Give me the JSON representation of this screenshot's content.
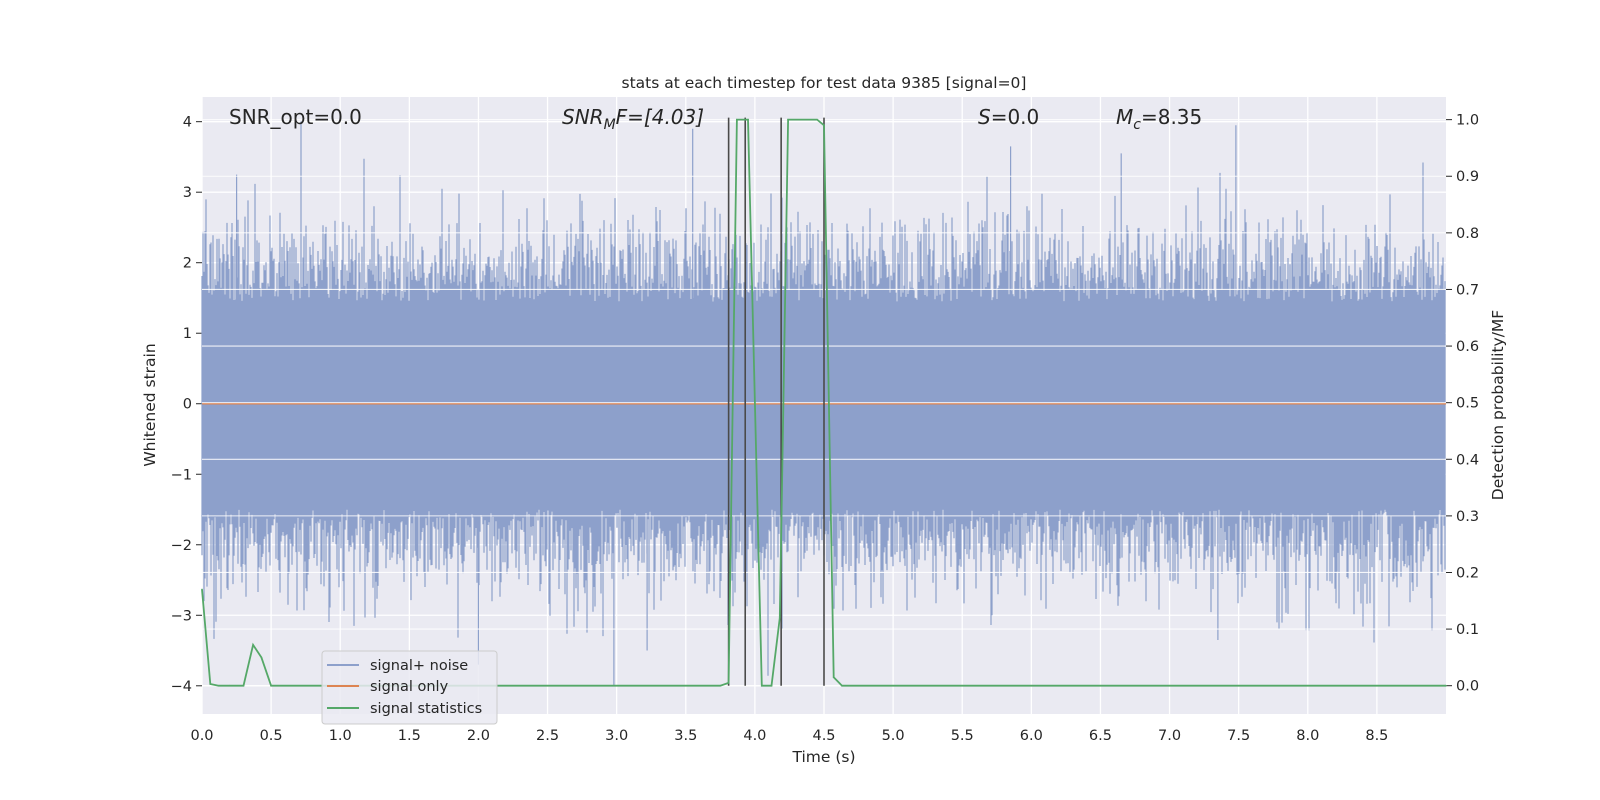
{
  "chart_data": {
    "type": "line",
    "title": "stats at each timestep for test data 9385 [signal=0]",
    "xlabel": "Time (s)",
    "ylabel_left": "Whitened strain",
    "ylabel_right": "Detection probability/MF",
    "xlim": [
      0.0,
      9.0
    ],
    "ylim_left": [
      -4.4,
      4.35
    ],
    "ylim_right": [
      -0.05,
      1.04
    ],
    "xticks": [
      "0.0",
      "0.5",
      "1.0",
      "1.5",
      "2.0",
      "2.5",
      "3.0",
      "3.5",
      "4.0",
      "4.5",
      "5.0",
      "5.5",
      "6.0",
      "6.5",
      "7.0",
      "7.5",
      "8.0",
      "8.5"
    ],
    "yticks_left": [
      "4",
      "3",
      "2",
      "1",
      "0",
      "−1",
      "−2",
      "−3",
      "−4"
    ],
    "yticks_right": [
      "1.0",
      "0.9",
      "0.8",
      "0.7",
      "0.6",
      "0.5",
      "0.4",
      "0.3",
      "0.2",
      "0.1",
      "0.0"
    ],
    "grid": true,
    "legend_position": "lower-left",
    "annotations": {
      "snr_opt": "SNR_opt=0.0",
      "snr_mf_base": "SNR",
      "snr_mf_sub": "M",
      "snr_mf_rest": "F=[4.03]",
      "s_italic": "S",
      "s_rest": "=0.0",
      "mc_base": "M",
      "mc_sub": "c",
      "mc_rest": "=8.35"
    },
    "series": [
      {
        "name": "signal+ noise",
        "axis": "left",
        "color": "#8da0cb",
        "description_values": "whitened noise envelope, approx. ±1.5 dense band with peaks up to 3.9 and down to -4.0",
        "notable_peaks": [
          {
            "x": 0.25,
            "y": 3.25
          },
          {
            "x": 3.55,
            "y": 3.9
          },
          {
            "x": 5.85,
            "y": 3.65
          },
          {
            "x": 6.65,
            "y": 3.55
          },
          {
            "x": 7.48,
            "y": 3.95
          },
          {
            "x": 2.0,
            "y": -3.7
          },
          {
            "x": 2.98,
            "y": -4.0
          },
          {
            "x": 3.22,
            "y": -3.5
          },
          {
            "x": 7.35,
            "y": -3.35
          }
        ]
      },
      {
        "name": "signal only",
        "axis": "left",
        "color": "#dd8452",
        "x": [
          0.0,
          9.0
        ],
        "y": [
          0.0,
          0.0
        ]
      },
      {
        "name": "signal statistics",
        "axis": "right",
        "color": "#55a868",
        "x": [
          0.0,
          0.06,
          0.12,
          0.2,
          0.3,
          0.37,
          0.43,
          0.5,
          3.75,
          3.81,
          3.87,
          3.95,
          4.05,
          4.12,
          4.18,
          4.24,
          4.45,
          4.5,
          4.57,
          4.63,
          9.0
        ],
        "y": [
          0.17,
          0.003,
          0.0,
          0.0,
          0.0,
          0.072,
          0.05,
          0.0,
          0.0,
          0.005,
          1.0,
          1.0,
          0.0,
          0.0,
          0.12,
          1.0,
          1.0,
          0.99,
          0.015,
          0.0,
          0.0
        ]
      }
    ],
    "vertical_markers": {
      "color": "#4a4a4a",
      "x": [
        3.81,
        3.93,
        4.19,
        4.5
      ]
    }
  }
}
